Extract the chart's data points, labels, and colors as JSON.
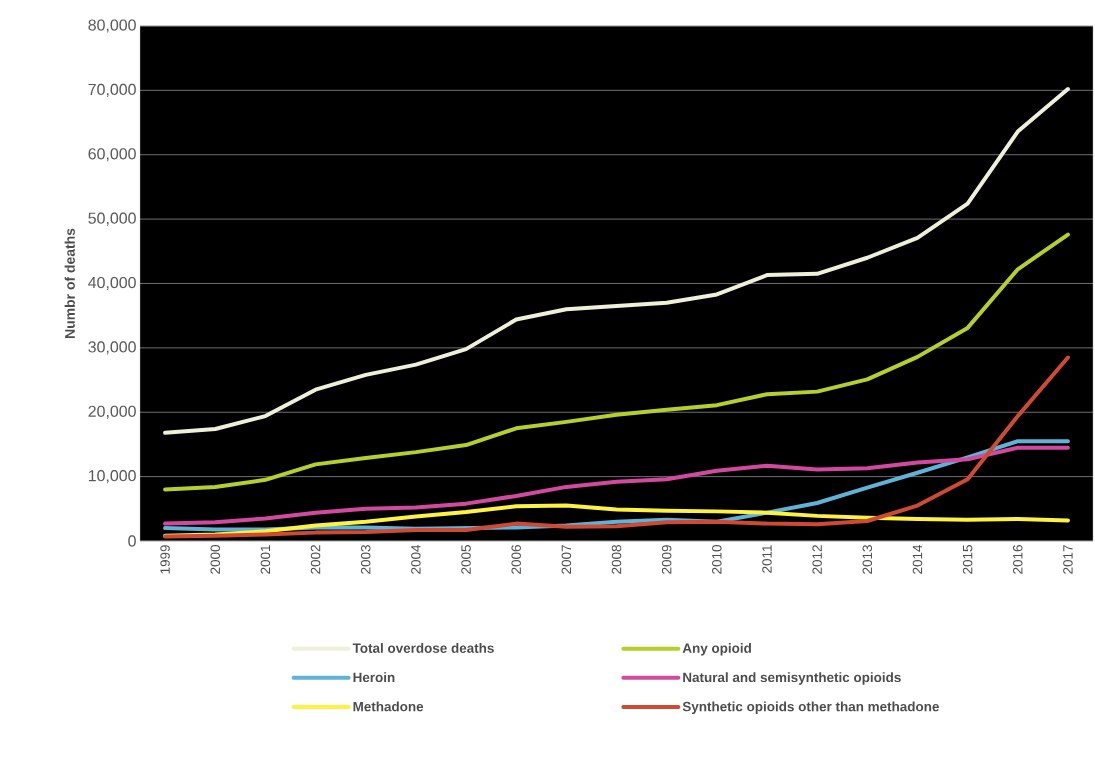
{
  "chart_data": {
    "type": "line",
    "ylabel": "Numbr of deaths",
    "categories": [
      "1999",
      "2000",
      "2001",
      "2002",
      "2003",
      "2004",
      "2005",
      "2006",
      "2007",
      "2008",
      "2009",
      "2010",
      "2011",
      "2012",
      "2013",
      "2014",
      "2015",
      "2016",
      "2017"
    ],
    "series": [
      {
        "name": "Total overdose deaths",
        "color": "#eef0d8",
        "values": [
          16800,
          17400,
          19400,
          23500,
          25800,
          27400,
          29800,
          34400,
          36000,
          36500,
          37000,
          38300,
          41300,
          41500,
          44000,
          47100,
          52400,
          63600,
          70200
        ]
      },
      {
        "name": "Any opioid",
        "color": "#b5cf2b",
        "values": [
          8000,
          8400,
          9500,
          11900,
          12900,
          13800,
          14900,
          17500,
          18500,
          19600,
          20400,
          21100,
          22800,
          23200,
          25100,
          28600,
          33100,
          42200,
          47600
        ]
      },
      {
        "name": "Heroin",
        "color": "#5fb3d6",
        "values": [
          2000,
          1800,
          1800,
          2100,
          2100,
          1900,
          2000,
          2100,
          2400,
          3000,
          3300,
          3000,
          4400,
          5900,
          8300,
          10600,
          13000,
          15500,
          15500
        ]
      },
      {
        "name": "Natural and semisynthetic opioids",
        "color": "#d24aa0",
        "values": [
          2700,
          2900,
          3500,
          4400,
          5000,
          5200,
          5800,
          7000,
          8400,
          9200,
          9600,
          10900,
          11700,
          11100,
          11300,
          12200,
          12700,
          14500,
          14500
        ]
      },
      {
        "name": "Methadone",
        "color": "#fdf23f",
        "values": [
          800,
          1000,
          1500,
          2400,
          3000,
          3800,
          4500,
          5400,
          5500,
          4900,
          4700,
          4600,
          4400,
          3900,
          3600,
          3400,
          3300,
          3400,
          3200
        ]
      },
      {
        "name": "Synthetic opioids other than methadone",
        "color": "#cf4a33",
        "values": [
          700,
          800,
          1000,
          1300,
          1400,
          1700,
          1700,
          2700,
          2200,
          2300,
          2900,
          3000,
          2700,
          2600,
          3100,
          5500,
          9600,
          19400,
          28500
        ]
      }
    ],
    "ylim": [
      0,
      80000
    ],
    "yticks": [
      {
        "value": 0,
        "label": "0"
      },
      {
        "value": 10000,
        "label": "10,000"
      },
      {
        "value": 20000,
        "label": "20,000"
      },
      {
        "value": 30000,
        "label": "30,000"
      },
      {
        "value": 40000,
        "label": "40,000"
      },
      {
        "value": 50000,
        "label": "50,000"
      },
      {
        "value": 60000,
        "label": "60,000"
      },
      {
        "value": 70000,
        "label": "70,000"
      },
      {
        "value": 80000,
        "label": "80,000"
      }
    ],
    "grid": "y",
    "legend": "bottom",
    "marker": "none",
    "line_style": "solid"
  }
}
